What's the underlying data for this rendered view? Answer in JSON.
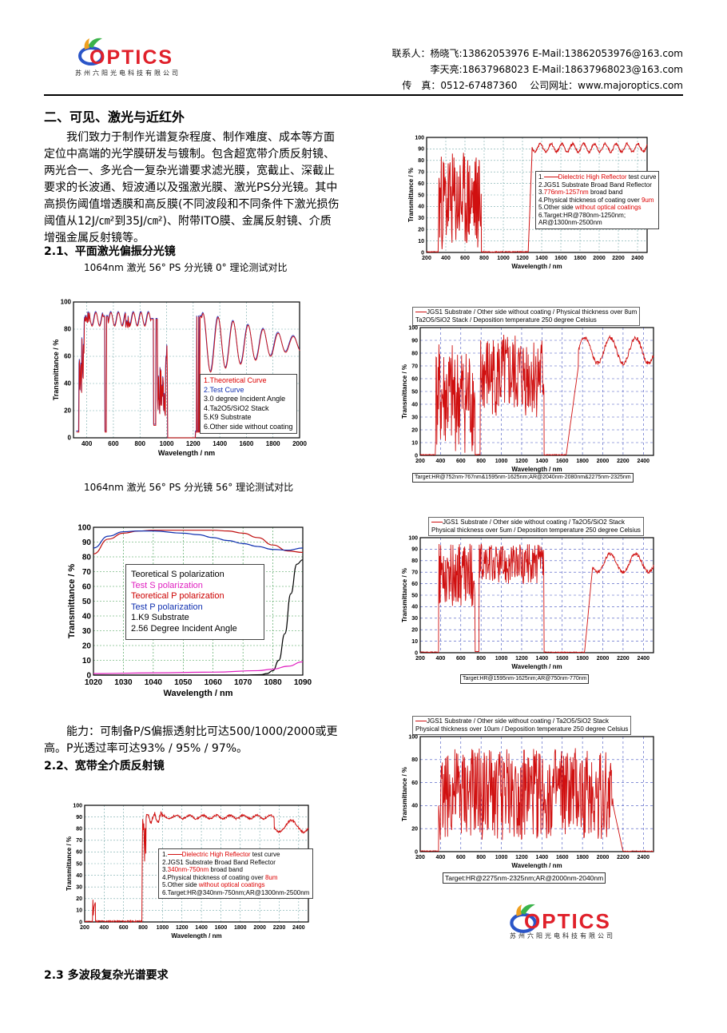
{
  "header": {
    "logo_text": "OPTICS",
    "logo_subtitle": "苏州六阳光电科技有限公司",
    "contact_line1": "联系人：杨晓飞:13862053976 E-Mail:13862053976@163.com",
    "contact_line2": "李天亮:18637968023 E-Mail:18637968023@163.com",
    "contact_line3": "传　真：0512-67487360　 公司网址：www.majoroptics.com"
  },
  "section": {
    "title": "二、可见、激光与近红外",
    "intro": "我们致力于制作光谱复杂程度、制作难度、成本等方面定位中高端的光学膜研发与镀制。包含超宽带介质反射镜、两光合一、多光合一复杂光谱要求滤光膜，宽截止、深截止要求的长波通、短波通以及强激光膜、激光PS分光镜。其中高损伤阈值增透膜和高反膜(不同波段和不同条件下激光损伤阈值从12J/㎝²到35J/㎝²)、附带ITO膜、金属反射镜、介质增强金属反射镜等。",
    "sub1": "2.1、平面激光偏振分光镜",
    "cap1": "1064nm 激光 56° PS 分光镜 0° 理论测试对比",
    "cap2": "1064nm 激光 56° PS 分光镜 56° 理论测试对比",
    "capability": "能力：可制备P/S偏振透射比可达500/1000/2000或更高。P光透过率可达93% / 95% / 97%。",
    "sub2": "2.2、宽带全介质反射镜",
    "sub3": "2.3 多波段复杂光谱要求"
  },
  "footer": {
    "logo_text": "OPTICS",
    "logo_subtitle": "苏州六阳光电科技有限公司"
  },
  "chart_data": [
    {
      "id": "ps0",
      "type": "line",
      "xlabel": "Wavelength / nm",
      "ylabel": "Transmittance / %",
      "xlim": [
        300,
        2000
      ],
      "ylim": [
        0,
        100
      ],
      "xticks": [
        400,
        600,
        800,
        1000,
        1200,
        1400,
        1600,
        1800,
        2000
      ],
      "yticks": [
        0,
        20,
        40,
        60,
        80,
        100
      ],
      "legend": [
        "1.Theoretical Curve",
        "2.Test Curve",
        "3.0 degree Incident Angle",
        "4.Ta2O5/SiO2 Stack",
        "5.K9 Substrate",
        "6.Other side without coating"
      ],
      "series": [
        {
          "name": "Theoretical Curve",
          "color": "#d01010"
        },
        {
          "name": "Test Curve",
          "color": "#3030b0"
        }
      ]
    },
    {
      "id": "ps56",
      "type": "line",
      "xlabel": "Wavelength / nm",
      "ylabel": "Transmittance / %",
      "xlim": [
        1020,
        1090
      ],
      "ylim": [
        0,
        100
      ],
      "xticks": [
        1020,
        1030,
        1040,
        1050,
        1060,
        1070,
        1080,
        1090
      ],
      "yticks": [
        0,
        10,
        20,
        30,
        40,
        50,
        60,
        70,
        80,
        90,
        100
      ],
      "legend": [
        "Teoretical S polarization",
        "Test S polarization",
        "Teoretical P polarization",
        "Test P polarization",
        "1.K9 Substrate",
        "2.56 Degree Incident Angle"
      ],
      "series": [
        {
          "name": "Teoretical S polarization",
          "color": "#000000",
          "x": [
            1020,
            1070,
            1076,
            1078,
            1080,
            1082,
            1084,
            1086,
            1088,
            1090
          ],
          "values": [
            0,
            0,
            0.3,
            1,
            3,
            10,
            28,
            55,
            75,
            78
          ]
        },
        {
          "name": "Test S polarization",
          "color": "#e020c0",
          "x": [
            1020,
            1040,
            1060,
            1075,
            1080,
            1085,
            1090
          ],
          "values": [
            1,
            1.5,
            2,
            3,
            4,
            6,
            9
          ]
        },
        {
          "name": "Teoretical P polarization",
          "color": "#c01010",
          "x": [
            1020,
            1025,
            1030,
            1035,
            1040,
            1050,
            1060,
            1065,
            1070,
            1075,
            1080,
            1085,
            1090
          ],
          "values": [
            82,
            92,
            96,
            97.5,
            98,
            98,
            98,
            97.5,
            96,
            93,
            88,
            84,
            83
          ]
        },
        {
          "name": "Test P polarization",
          "color": "#1030b0",
          "x": [
            1020,
            1025,
            1030,
            1035,
            1040,
            1050,
            1055,
            1060,
            1065,
            1070,
            1075,
            1080,
            1085,
            1090
          ],
          "values": [
            86,
            94,
            97,
            97.5,
            97.5,
            96,
            95,
            93,
            91,
            89,
            87,
            85,
            84.5,
            86
          ]
        }
      ]
    },
    {
      "id": "bb1",
      "type": "line",
      "xlabel": "Wavelength / nm",
      "ylabel": "Transmittance / %",
      "xlim": [
        200,
        2500
      ],
      "ylim": [
        0,
        100
      ],
      "xticks": [
        200,
        400,
        600,
        800,
        1000,
        1200,
        1400,
        1600,
        1800,
        2000,
        2200,
        2400
      ],
      "yticks": [
        0,
        10,
        20,
        30,
        40,
        50,
        60,
        70,
        80,
        90,
        100
      ],
      "legend": [
        "1.",
        "Dielectric High Reflector",
        " test curve",
        "2.JGS1 Substrate Broad Band Reflector",
        "3.",
        "340nm-750nm",
        " broad band",
        "4.Physical thickness of coating over ",
        "8um",
        "5.Other side ",
        "without optical coatings",
        "6.Target:HR@340nm-750nm;AR@1300nm-2500nm"
      ],
      "series": [
        {
          "name": "Dielectric High Reflector",
          "color": "#d01010"
        }
      ]
    },
    {
      "id": "hr780",
      "type": "line",
      "xlabel": "Wavelength / nm",
      "ylabel": "Transmittance / %",
      "xlim": [
        200,
        2500
      ],
      "ylim": [
        0,
        100
      ],
      "xticks": [
        200,
        400,
        600,
        800,
        1000,
        1200,
        1400,
        1600,
        1800,
        2000,
        2200,
        2400
      ],
      "yticks": [
        0,
        10,
        20,
        30,
        40,
        50,
        60,
        70,
        80,
        90,
        100
      ],
      "legend": [
        "1.",
        "Dielectric High Reflector",
        " test curve",
        "2.JGS1 Substrate Broad Band Reflector",
        "3.",
        "776nm-1257nm",
        " broad band",
        "4.Physical thickness of coating over ",
        "9um",
        "5.Other side ",
        "without optical coatings",
        "6.Target:HR@780nm-1250nm;",
        "AR@1300nm-2500nm"
      ],
      "series": [
        {
          "name": "Dielectric High Reflector",
          "color": "#d01010"
        }
      ]
    },
    {
      "id": "m1",
      "type": "line",
      "title": "JGS1 Substrate / Other side without coating / Physical thickness over 8um",
      "title2": "Ta2O5/SiO2 Stack / Deposition temperature 250 degree Celsius",
      "xlabel": "Wavelength / nm",
      "ylabel": "Transmittance / %",
      "xlim": [
        200,
        2500
      ],
      "ylim": [
        0,
        100
      ],
      "xticks": [
        200,
        400,
        600,
        800,
        1000,
        1200,
        1400,
        1600,
        1800,
        2000,
        2200,
        2400
      ],
      "yticks": [
        0,
        10,
        20,
        30,
        40,
        50,
        60,
        70,
        80,
        90,
        100
      ],
      "target": "Target:HR@752nm-767nm&1595nm-1625nm;AR@2040nm-2080nm&2275nm-2325nm",
      "series": [
        {
          "name": "JGS1 Substrate",
          "color": "#d01010"
        }
      ]
    },
    {
      "id": "m2",
      "type": "line",
      "title": "JGS1 Substrate / Other side without coating / Ta2O5/SiO2 Stack",
      "title2": "Physical thickness over 5um / Deposition temperature 250 degree Celsius",
      "xlabel": "Wavelength / nm",
      "ylabel": "Transmittance / %",
      "xlim": [
        200,
        2500
      ],
      "ylim": [
        0,
        100
      ],
      "xticks": [
        200,
        400,
        600,
        800,
        1000,
        1200,
        1400,
        1600,
        1800,
        2000,
        2200,
        2400
      ],
      "yticks": [
        0,
        10,
        20,
        30,
        40,
        50,
        60,
        70,
        80,
        90,
        100
      ],
      "target": "Target:HR@1595nm-1625nm;AR@750nm-770nm",
      "series": [
        {
          "name": "JGS1 Substrate",
          "color": "#d01010"
        }
      ]
    },
    {
      "id": "m3",
      "type": "line",
      "title": "JGS1 Substrate / Other side without coating / Ta2O5/SiO2 Stack",
      "title2": "Physical thickness over 10um / Deposition temperature 250 degree Celsius",
      "xlabel": "Wavelength / nm",
      "ylabel": "Transmittance / %",
      "xlim": [
        200,
        2500
      ],
      "ylim": [
        0,
        100
      ],
      "xticks": [
        200,
        400,
        600,
        800,
        1000,
        1200,
        1400,
        1600,
        1800,
        2000,
        2200,
        2400
      ],
      "yticks": [
        0,
        20,
        40,
        60,
        80,
        100
      ],
      "target": "Target:HR@2275nm-2325nm;AR@2000nm-2040nm",
      "series": [
        {
          "name": "JGS1 Substrate",
          "color": "#d01010"
        }
      ]
    }
  ]
}
